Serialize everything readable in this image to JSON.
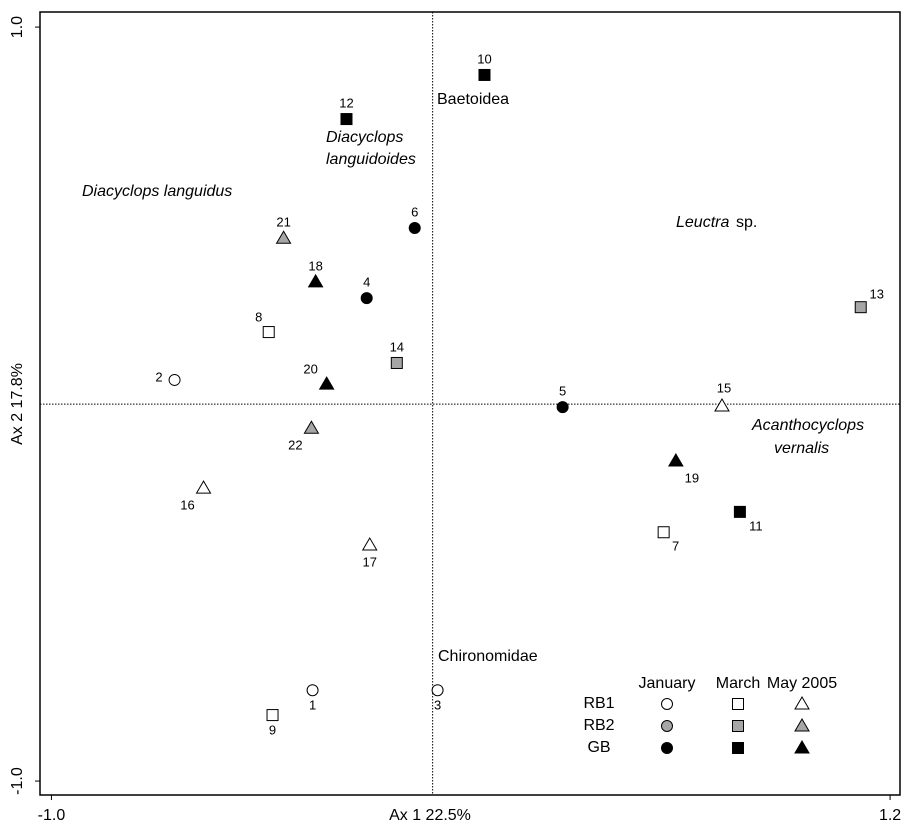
{
  "chart_data": {
    "type": "scatter",
    "x_label": "Ax 1  22.5%",
    "y_label": "Ax 2  17.8%",
    "xlim": [
      -1.03,
      1.226
    ],
    "ylim": [
      -1.037,
      1.04
    ],
    "xticks": [
      {
        "value": -1,
        "label": "-1.0"
      },
      {
        "value": 1.2,
        "label": "1.2"
      }
    ],
    "yticks": [
      {
        "value": -1,
        "label": "-1.0"
      },
      {
        "value": 1,
        "label": "1.0"
      }
    ],
    "months": [
      "January",
      "March",
      "May 2005"
    ],
    "markers": [
      "circle",
      "square",
      "triangle"
    ],
    "series": [
      {
        "name": "RB1",
        "color": "#ffffff",
        "months": [
          {
            "x": [
              -0.677,
              -0.315,
              0.013
            ],
            "y": [
              0.064,
              -0.759,
              -0.759
            ],
            "labels": [
              "2",
              "1",
              "3"
            ]
          },
          {
            "x": [
              -0.43,
              -0.42,
              0.606
            ],
            "y": [
              0.191,
              -0.825,
              -0.34
            ],
            "labels": [
              "8",
              "9",
              "7"
            ]
          },
          {
            "x": [
              -0.601,
              -0.165,
              0.759
            ],
            "y": [
              -0.223,
              -0.374,
              -0.005
            ],
            "labels": [
              "16",
              "17",
              "15"
            ]
          }
        ]
      },
      {
        "name": "RB2",
        "color": "#a6a6a6",
        "months": [
          {
            "x": [],
            "y": [],
            "labels": []
          },
          {
            "x": [
              -0.094,
              1.123
            ],
            "y": [
              0.109,
              0.257
            ],
            "labels": [
              "14",
              "13"
            ]
          },
          {
            "x": [
              -0.391,
              -0.318
            ],
            "y": [
              0.44,
              -0.064
            ],
            "labels": [
              "21",
              "22"
            ]
          }
        ]
      },
      {
        "name": "GB",
        "color": "#000000",
        "months": [
          {
            "x": [
              -0.047,
              -0.173,
              0.341
            ],
            "y": [
              0.467,
              0.281,
              -0.008
            ],
            "labels": [
              "6",
              "4",
              "5"
            ]
          },
          {
            "x": [
              0.136,
              -0.226,
              0.806
            ],
            "y": [
              0.873,
              0.756,
              -0.286
            ],
            "labels": [
              "10",
              "12",
              "11"
            ]
          },
          {
            "x": [
              -0.307,
              -0.278,
              0.638
            ],
            "y": [
              0.324,
              0.053,
              -0.151
            ],
            "labels": [
              "18",
              "20",
              "19"
            ]
          }
        ]
      }
    ],
    "annotations": {
      "baetoidea": "Baetoidea",
      "diacyclops_1": "Diacyclops",
      "languidoides": "languidoides",
      "languidus": "Diacyclops languidus",
      "leuctra": "Leuctra",
      "sp": "sp.",
      "acanthocyclops": "Acanthocyclops",
      "vernalis": "vernalis",
      "chironomidae": "Chironomidae"
    }
  }
}
